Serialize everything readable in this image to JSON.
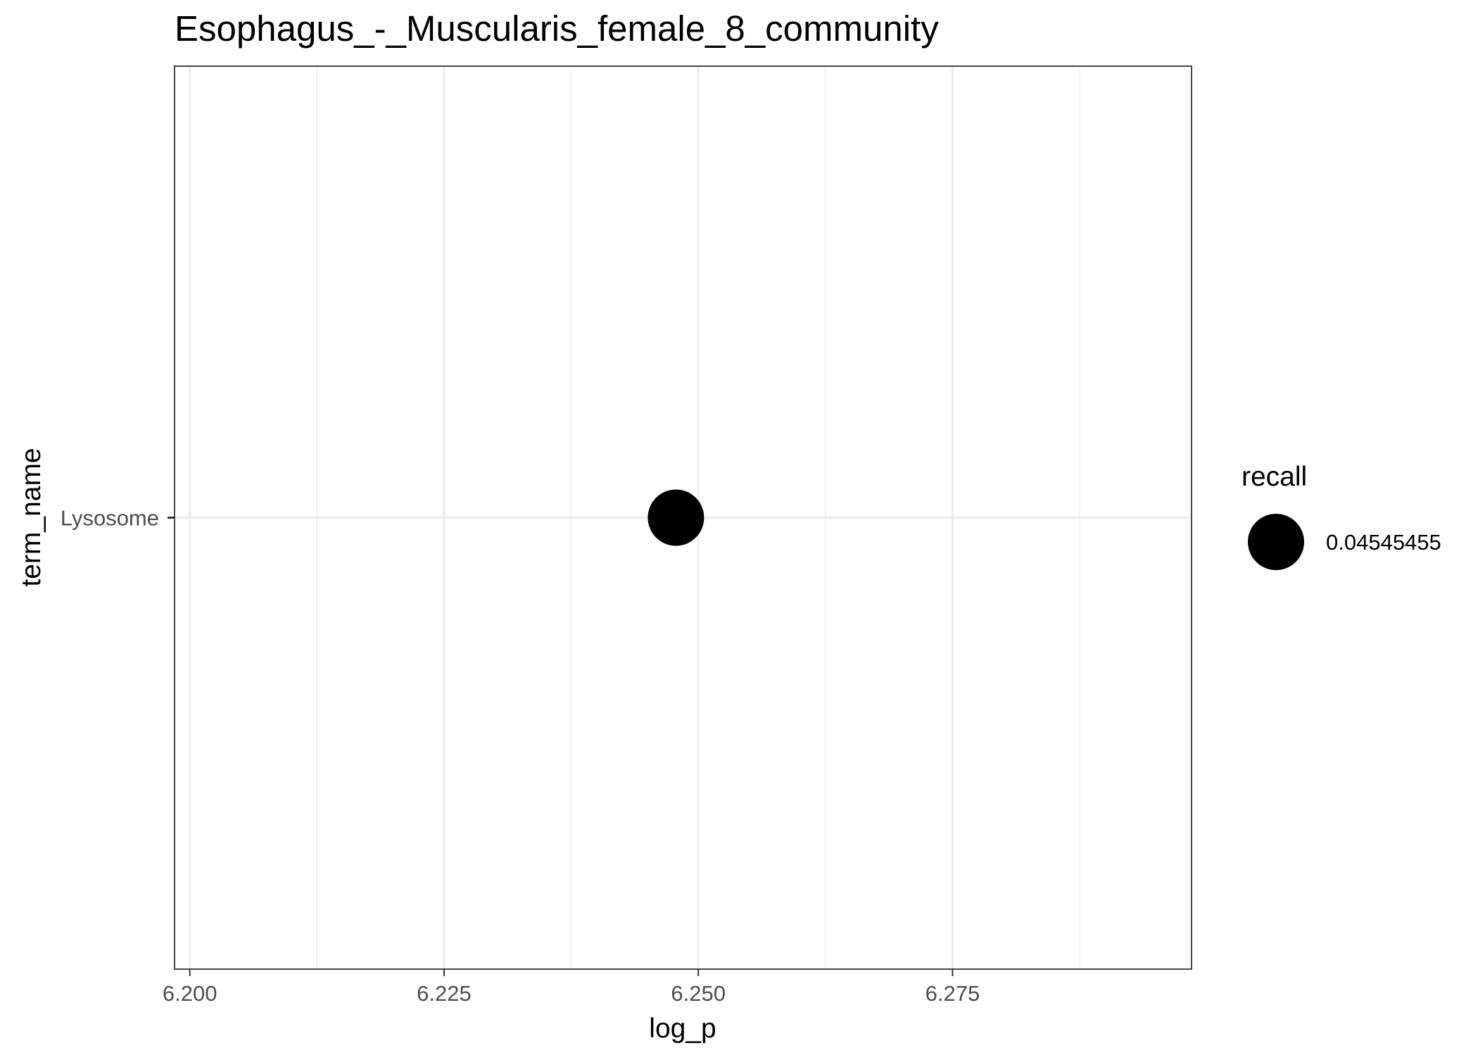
{
  "chart_data": {
    "type": "scatter",
    "title": "Esophagus_-_Muscularis_female_8_community",
    "xlabel": "log_p",
    "ylabel": "term_name",
    "xlim": [
      6.1985,
      6.2985
    ],
    "x_ticks": [
      6.2,
      6.225,
      6.25,
      6.275
    ],
    "x_tick_labels": [
      "6.200",
      "6.225",
      "6.250",
      "6.275"
    ],
    "categories": [
      "Lysosome"
    ],
    "points": [
      {
        "term_name": "Lysosome",
        "log_p": 6.2478,
        "recall": 0.04545455
      }
    ],
    "grid": true,
    "legend": {
      "title": "recall",
      "position": "right",
      "entries": [
        {
          "label": "0.04545455",
          "value": 0.04545455
        }
      ]
    },
    "colors": {
      "point": "#000000",
      "panel_border": "#333333",
      "grid_major": "#ebebeb",
      "grid_minor": "#f2f2f2",
      "tick_text": "#4d4d4d"
    }
  }
}
